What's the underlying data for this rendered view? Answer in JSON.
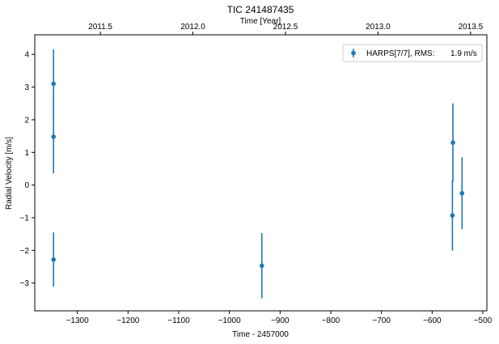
{
  "chart_data": {
    "type": "scatter",
    "title": "TIC 241487435",
    "xlabel": "Time - 2457000",
    "ylabel": "Radial Velocity [m/s]",
    "top_xlabel": "Time [Year]",
    "xlim": [
      -1384,
      -492
    ],
    "ylim": [
      -3.85,
      4.6
    ],
    "xticks": [
      -1300,
      -1200,
      -1100,
      -1000,
      -900,
      -800,
      -700,
      -600,
      -500
    ],
    "xtick_labels": [
      "−1300",
      "−1200",
      "−1100",
      "−1000",
      "−900",
      "−800",
      "−700",
      "−600",
      "−500"
    ],
    "yticks": [
      -3,
      -2,
      -1,
      0,
      1,
      2,
      3,
      4
    ],
    "ytick_labels": [
      "−3",
      "−2",
      "−1",
      "0",
      "1",
      "2",
      "3",
      "4"
    ],
    "top_xticks": [
      2011.5,
      2012.0,
      2012.5,
      2013.0,
      2013.5
    ],
    "top_xtick_labels": [
      "2011.5",
      "2012.0",
      "2012.5",
      "2013.0",
      "2013.5"
    ],
    "grid": false,
    "legend_position": "top-right",
    "series": [
      {
        "name": "HARPS[7/7], RMS:",
        "rms": "1.9 m/s",
        "color": "#1f77b4",
        "points": [
          {
            "x": -1347,
            "y": 3.1,
            "err": 1.05
          },
          {
            "x": -1347,
            "y": 1.48,
            "err": 1.12
          },
          {
            "x": -1347,
            "y": -2.28,
            "err": 0.83
          },
          {
            "x": -936,
            "y": -2.47,
            "err": 1.0
          },
          {
            "x": -559,
            "y": 1.3,
            "err": 1.2
          },
          {
            "x": -560,
            "y": -0.93,
            "err": 1.08
          },
          {
            "x": -541,
            "y": -0.25,
            "err": 1.1
          }
        ]
      }
    ]
  }
}
